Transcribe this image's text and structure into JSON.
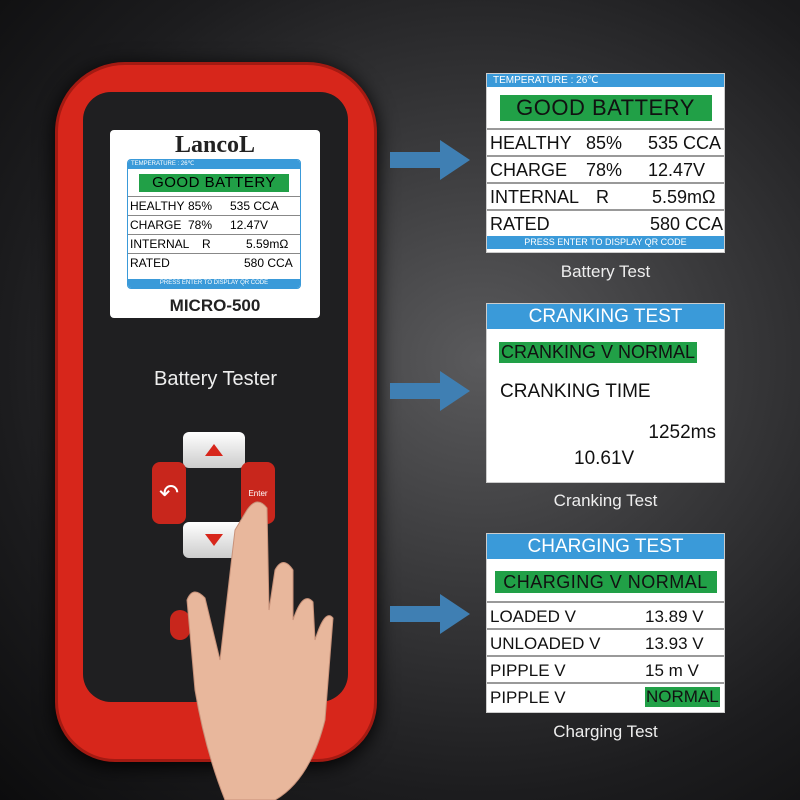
{
  "device": {
    "brand": "LancoL",
    "model": "MICRO-500",
    "label": "Battery Tester",
    "enter_label": "Enter",
    "screen": {
      "temperature": "TEMPERATURE : 26℃",
      "status": "GOOD BATTERY",
      "rows": [
        [
          "HEALTHY",
          "85%",
          "535 CCA"
        ],
        [
          "CHARGE",
          "78%",
          "12.47V"
        ],
        [
          "INTERNAL",
          "R",
          "5.59mΩ"
        ],
        [
          "RATED",
          "",
          "580 CCA"
        ]
      ],
      "footer": "PRESS ENTER TO DISPLAY QR CODE"
    }
  },
  "battery_test": {
    "temperature": "TEMPERATURE : 26℃",
    "status": "GOOD BATTERY",
    "rows": [
      [
        "HEALTHY",
        "85%",
        "535 CCA"
      ],
      [
        "CHARGE",
        "78%",
        "12.47V"
      ],
      [
        "INTERNAL",
        "R",
        "5.59mΩ"
      ],
      [
        "RATED",
        "",
        "580 CCA"
      ]
    ],
    "footer": "PRESS ENTER TO DISPLAY QR CODE",
    "caption": "Battery Test"
  },
  "cranking_test": {
    "title": "CRANKING TEST",
    "status": "CRANKING V NORMAL",
    "time_label": "CRANKING TIME",
    "time_value": "1252ms",
    "voltage": "10.61V",
    "caption": "Cranking Test"
  },
  "charging_test": {
    "title": "CHARGING TEST",
    "status": "CHARGING V NORMAL",
    "rows": [
      [
        "LOADED  V",
        "13.89 V"
      ],
      [
        "UNLOADED  V",
        "13.93 V"
      ],
      [
        "PIPPLE  V",
        "15 m V"
      ],
      [
        "PIPPLE  V",
        "NORMAL"
      ]
    ],
    "caption": "Charging Test"
  },
  "colors": {
    "device_red": "#d7261b",
    "screen_blue": "#3a9ad9",
    "status_green": "#21a047",
    "arrow_blue": "#3f7fb3"
  }
}
